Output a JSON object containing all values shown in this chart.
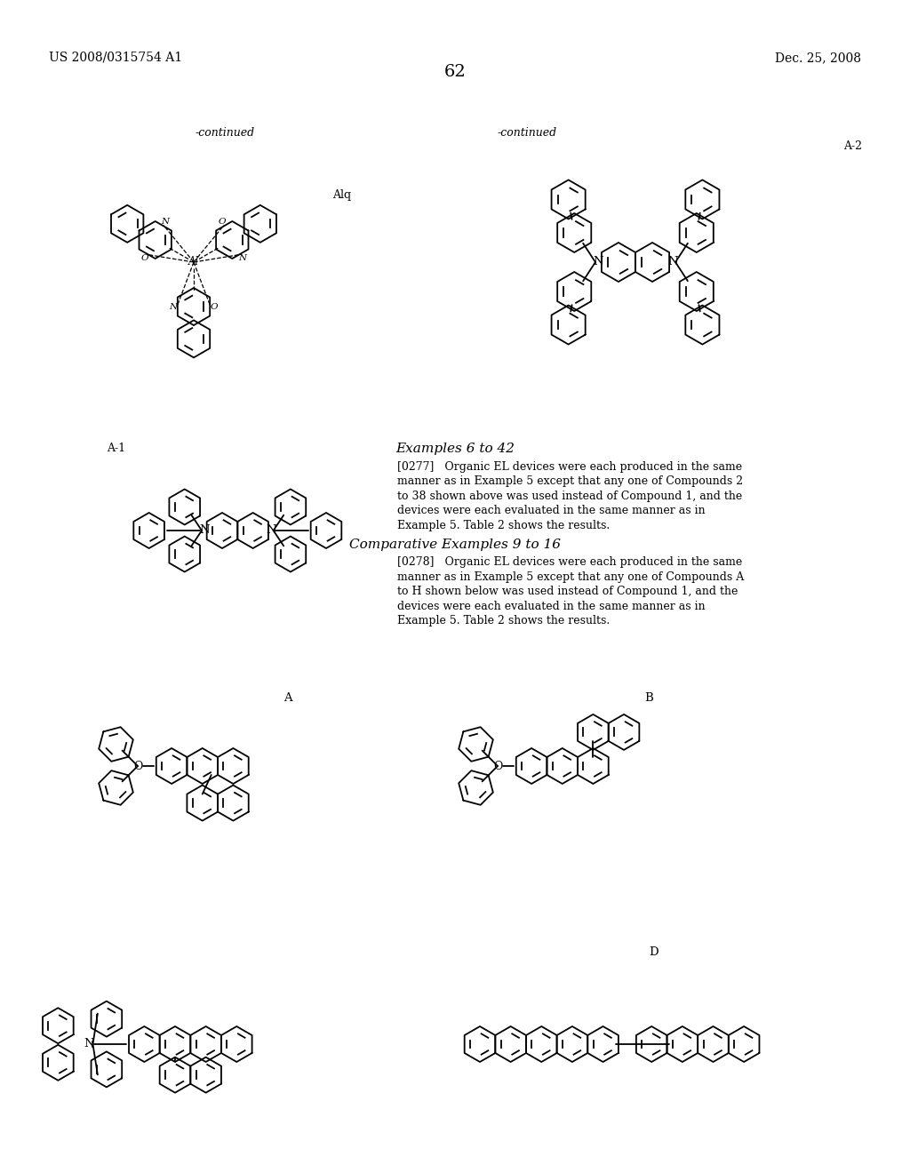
{
  "patent_number": "US 2008/0315754 A1",
  "date": "Dec. 25, 2008",
  "page_number": "62",
  "bg": "#ffffff",
  "continued_left": "-continued",
  "continued_right": "-continued",
  "label_alq": "Alq",
  "label_a2": "A-2",
  "label_a1": "A-1",
  "label_a": "A",
  "label_b": "B",
  "label_d": "D",
  "section_title1": "Examples 6 to 42",
  "section_title2": "Comparative Examples 9 to 16",
  "para1_label": "[0277]",
  "para1_text": "   Organic EL devices were each produced in the same manner as in Example 5 except that any one of Compounds 2 to 38 shown above was used instead of Compound 1, and the devices were each evaluated in the same manner as in Example 5. Table 2 shows the results.",
  "para2_label": "[0278]",
  "para2_text": "   Organic EL devices were each produced in the same manner as in Example 5 except that any one of Compounds A to H shown below was used instead of Compound 1, and the devices were each evaluated in the same manner as in Example 5. Table 2 shows the results."
}
